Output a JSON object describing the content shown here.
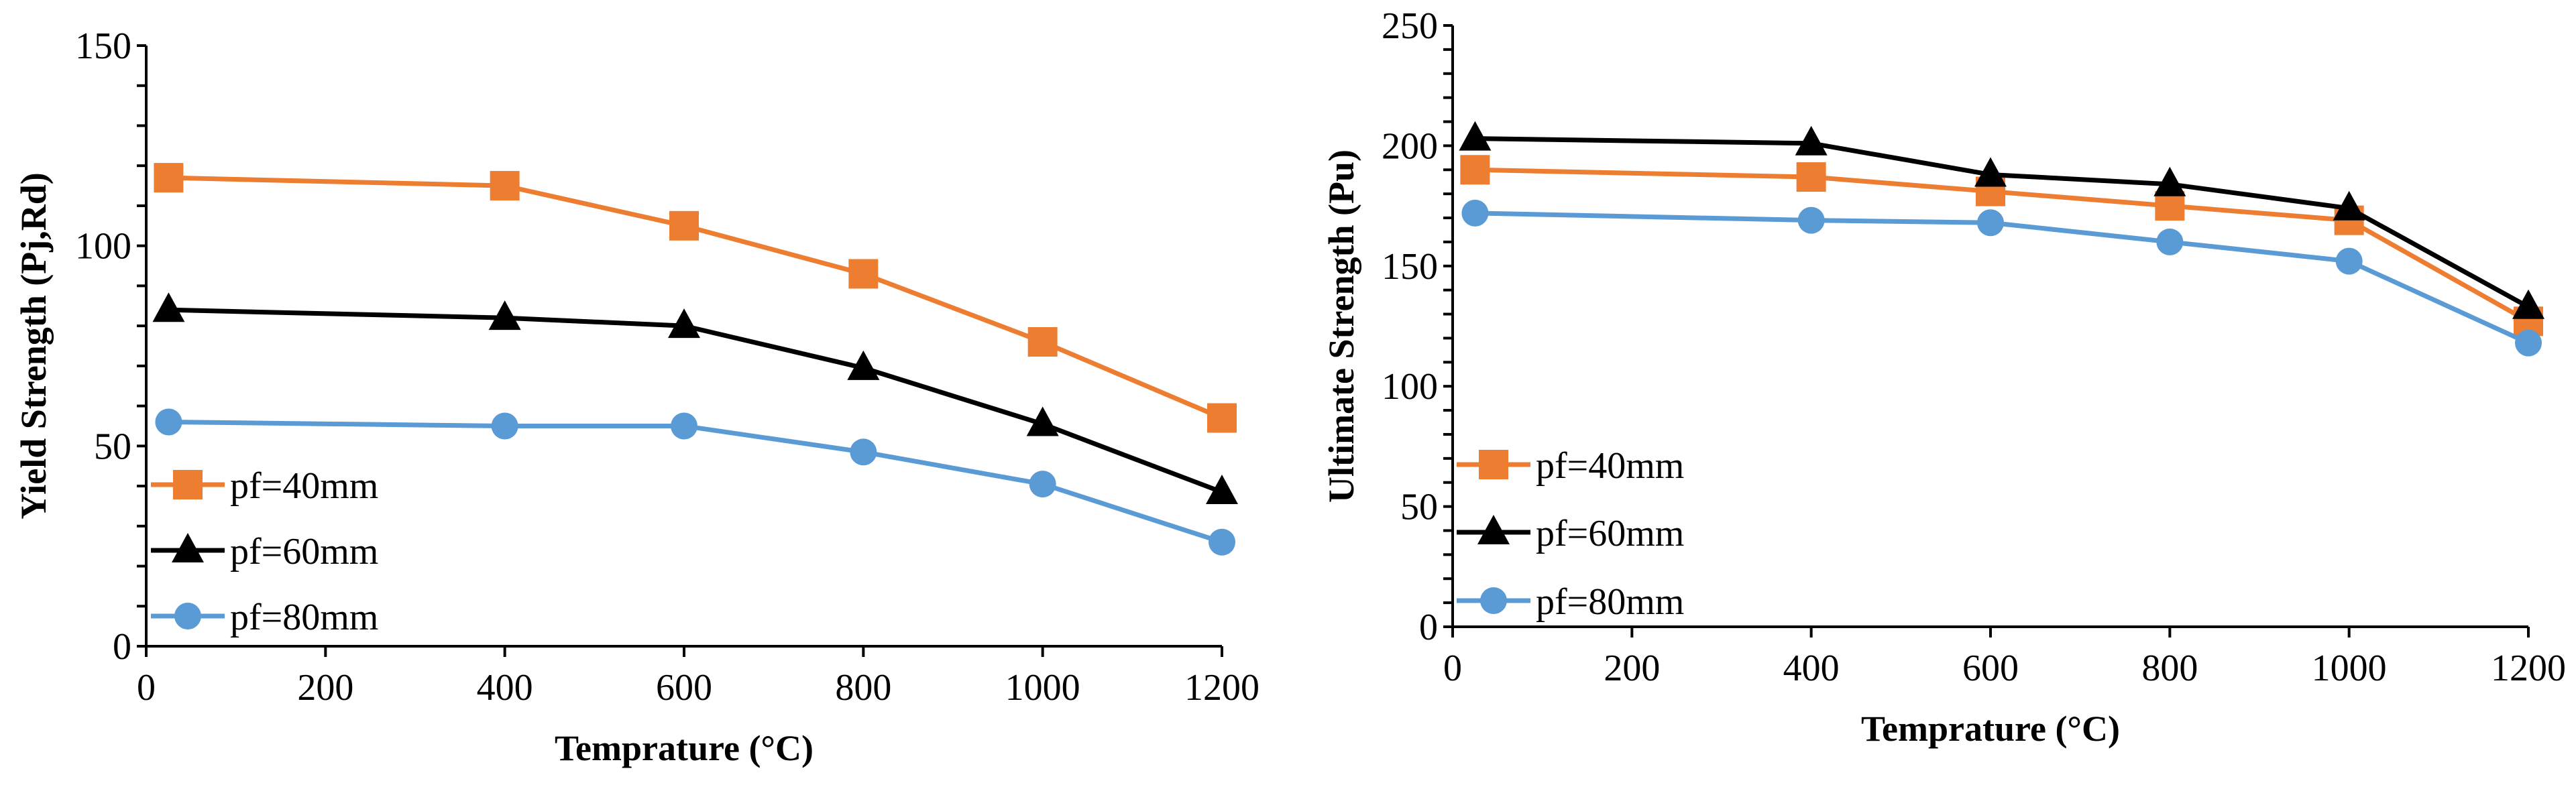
{
  "chart_data": [
    {
      "type": "line",
      "xlabel": "Temprature (°C)",
      "ylabel": "Yield Strength (Pj,Rd)",
      "xlim": [
        0,
        1200
      ],
      "ylim": [
        0,
        150
      ],
      "xticks": [
        0,
        200,
        400,
        600,
        800,
        1000,
        1200
      ],
      "yticks": [
        0,
        50,
        100,
        150
      ],
      "y_minor_step": 10,
      "grid": false,
      "legend_position": "bottom-left",
      "x": [
        25,
        400,
        600,
        800,
        1000,
        1200
      ],
      "series": [
        {
          "name": "pf=40mm",
          "color": "#ED7D31",
          "marker": "square",
          "values": [
            117,
            115,
            105,
            93,
            76,
            57
          ]
        },
        {
          "name": "pf=60mm",
          "color": "#000000",
          "marker": "triangle",
          "values": [
            84,
            82,
            80,
            69.5,
            55.5,
            38.5
          ]
        },
        {
          "name": "pf=80mm",
          "color": "#5B9BD5",
          "marker": "circle",
          "values": [
            56,
            55,
            55,
            48.5,
            40.5,
            26
          ]
        }
      ]
    },
    {
      "type": "line",
      "xlabel": "Temprature (°C)",
      "ylabel": "Ultimate Strength (Pu)",
      "xlim": [
        0,
        1200
      ],
      "ylim": [
        0,
        250
      ],
      "xticks": [
        0,
        200,
        400,
        600,
        800,
        1000,
        1200
      ],
      "yticks": [
        0,
        50,
        100,
        150,
        200,
        250
      ],
      "y_minor_step": 10,
      "grid": false,
      "legend_position": "bottom-left",
      "x": [
        25,
        400,
        600,
        800,
        1000,
        1200
      ],
      "series": [
        {
          "name": "pf=40mm",
          "color": "#ED7D31",
          "marker": "square",
          "values": [
            190,
            187,
            181,
            175,
            169,
            127
          ]
        },
        {
          "name": "pf=60mm",
          "color": "#000000",
          "marker": "triangle",
          "values": [
            203,
            201,
            188,
            184,
            174,
            133
          ]
        },
        {
          "name": "pf=80mm",
          "color": "#5B9BD5",
          "marker": "circle",
          "values": [
            172,
            169,
            168,
            160,
            152,
            118
          ]
        }
      ]
    }
  ]
}
